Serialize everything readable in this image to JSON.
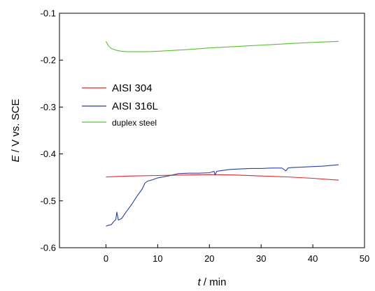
{
  "chart_data": {
    "type": "line",
    "title": "",
    "xlabel": {
      "symbol": "t",
      "unit": " / min"
    },
    "ylabel": {
      "symbol": "E",
      "unit": " / V vs. SCE"
    },
    "xlim": [
      -9,
      50
    ],
    "ylim": [
      -0.6,
      -0.1
    ],
    "xticks": [
      0,
      10,
      20,
      30,
      40,
      50
    ],
    "yticks": [
      -0.6,
      -0.5,
      -0.4,
      -0.3,
      -0.2,
      -0.1
    ],
    "xtick_labels": [
      "0",
      "10",
      "20",
      "30",
      "40",
      "50"
    ],
    "ytick_labels": [
      "-0.6",
      "-0.5",
      "-0.4",
      "-0.3",
      "-0.2",
      "-0.1"
    ],
    "grid": false,
    "legend_position": "middle-left",
    "series": [
      {
        "name": "AISI 304",
        "color": "#e0262a",
        "x": [
          0,
          2,
          5,
          10,
          15,
          20,
          25,
          30,
          35,
          40,
          45
        ],
        "y": [
          -0.449,
          -0.448,
          -0.447,
          -0.446,
          -0.445,
          -0.444,
          -0.445,
          -0.447,
          -0.449,
          -0.452,
          -0.456
        ]
      },
      {
        "name": "AISI 316L",
        "color": "#2b3fa6",
        "x": [
          0,
          0.5,
          1,
          1.5,
          1.9,
          2.1,
          2.4,
          3,
          4,
          5,
          6,
          7,
          7.5,
          8,
          9,
          10,
          12,
          14,
          16,
          18,
          20,
          20.9,
          21.1,
          21.4,
          22,
          24,
          26,
          28,
          30,
          32,
          34,
          34.8,
          35.2,
          36,
          38,
          40,
          42,
          44,
          45
        ],
        "y": [
          -0.554,
          -0.552,
          -0.551,
          -0.544,
          -0.54,
          -0.524,
          -0.541,
          -0.538,
          -0.522,
          -0.507,
          -0.49,
          -0.475,
          -0.463,
          -0.458,
          -0.455,
          -0.451,
          -0.447,
          -0.442,
          -0.441,
          -0.441,
          -0.44,
          -0.437,
          -0.445,
          -0.437,
          -0.436,
          -0.433,
          -0.432,
          -0.431,
          -0.431,
          -0.43,
          -0.43,
          -0.436,
          -0.43,
          -0.429,
          -0.428,
          -0.427,
          -0.426,
          -0.424,
          -0.423
        ]
      },
      {
        "name": "duplex steel",
        "color": "#5ac034",
        "x": [
          0,
          0.5,
          1,
          2,
          3,
          4,
          5,
          6,
          8,
          10,
          15,
          20,
          25,
          30,
          35,
          40,
          45
        ],
        "y": [
          -0.16,
          -0.17,
          -0.175,
          -0.179,
          -0.181,
          -0.182,
          -0.182,
          -0.182,
          -0.182,
          -0.181,
          -0.178,
          -0.174,
          -0.171,
          -0.168,
          -0.165,
          -0.162,
          -0.16
        ]
      }
    ]
  }
}
